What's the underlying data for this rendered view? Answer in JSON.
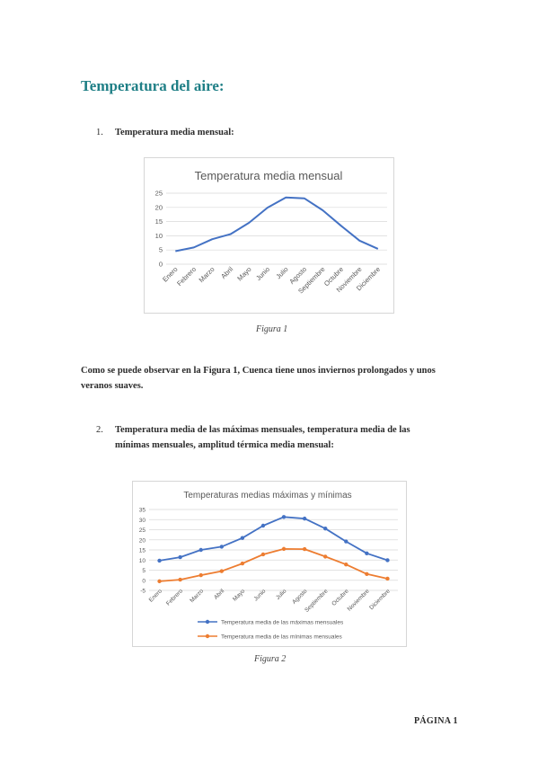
{
  "document": {
    "title": "Temperatura del aire:",
    "item1_number": "1.",
    "item1_text": "Temperatura media mensual:",
    "figure1_caption": "Figura 1",
    "paragraph": "Como se puede observar en la Figura 1, Cuenca tiene unos inviernos prolongados y unos veranos suaves.",
    "item2_number": "2.",
    "item2_text": "Temperatura media de las máximas mensuales, temperatura media de las mínimas mensuales, amplitud térmica media mensual:",
    "figure2_caption": "Figura 2",
    "footer": "PÁGINA 1"
  },
  "chart_data": [
    {
      "type": "line",
      "title": "Temperatura media mensual",
      "categories": [
        "Enero",
        "Febrero",
        "Marzo",
        "Abril",
        "Mayo",
        "Junio",
        "Julio",
        "Agosto",
        "Septiembre",
        "Octubre",
        "Noviembre",
        "Diciembre"
      ],
      "series": [
        {
          "values": [
            4.6,
            5.9,
            8.8,
            10.6,
            14.6,
            19.9,
            23.5,
            23.2,
            19.0,
            13.5,
            8.3,
            5.4
          ],
          "color": "#4472c4"
        }
      ],
      "yticks": [
        "0",
        "5",
        "10",
        "15",
        "20",
        "25"
      ],
      "ylim": [
        0,
        25
      ],
      "grid": true,
      "legend": "none"
    },
    {
      "type": "line",
      "title": "Temperaturas medias máximas y mínimas",
      "categories": [
        "Enero",
        "Febrero",
        "Marzo",
        "Abril",
        "Mayo",
        "Junio",
        "Julio",
        "Agosto",
        "Septiembre",
        "Octubre",
        "Noviembre",
        "Diciembre"
      ],
      "series": [
        {
          "name": "Temperatura media de las máximas mensuales",
          "values": [
            9.7,
            11.4,
            15.0,
            16.6,
            20.9,
            27.0,
            31.3,
            30.5,
            25.6,
            19.2,
            13.3,
            9.9
          ],
          "color": "#4472c4"
        },
        {
          "name": "Temperatura media de las mínimas mensuales",
          "values": [
            -0.5,
            0.3,
            2.5,
            4.5,
            8.3,
            12.8,
            15.5,
            15.4,
            11.7,
            7.8,
            3.1,
            0.8
          ],
          "color": "#ed7d31"
        }
      ],
      "yticks": [
        "-5",
        "0",
        "5",
        "10",
        "15",
        "20",
        "25",
        "30",
        "35"
      ],
      "ylim": [
        -5,
        35
      ],
      "grid": true,
      "legend": "bottom"
    }
  ]
}
